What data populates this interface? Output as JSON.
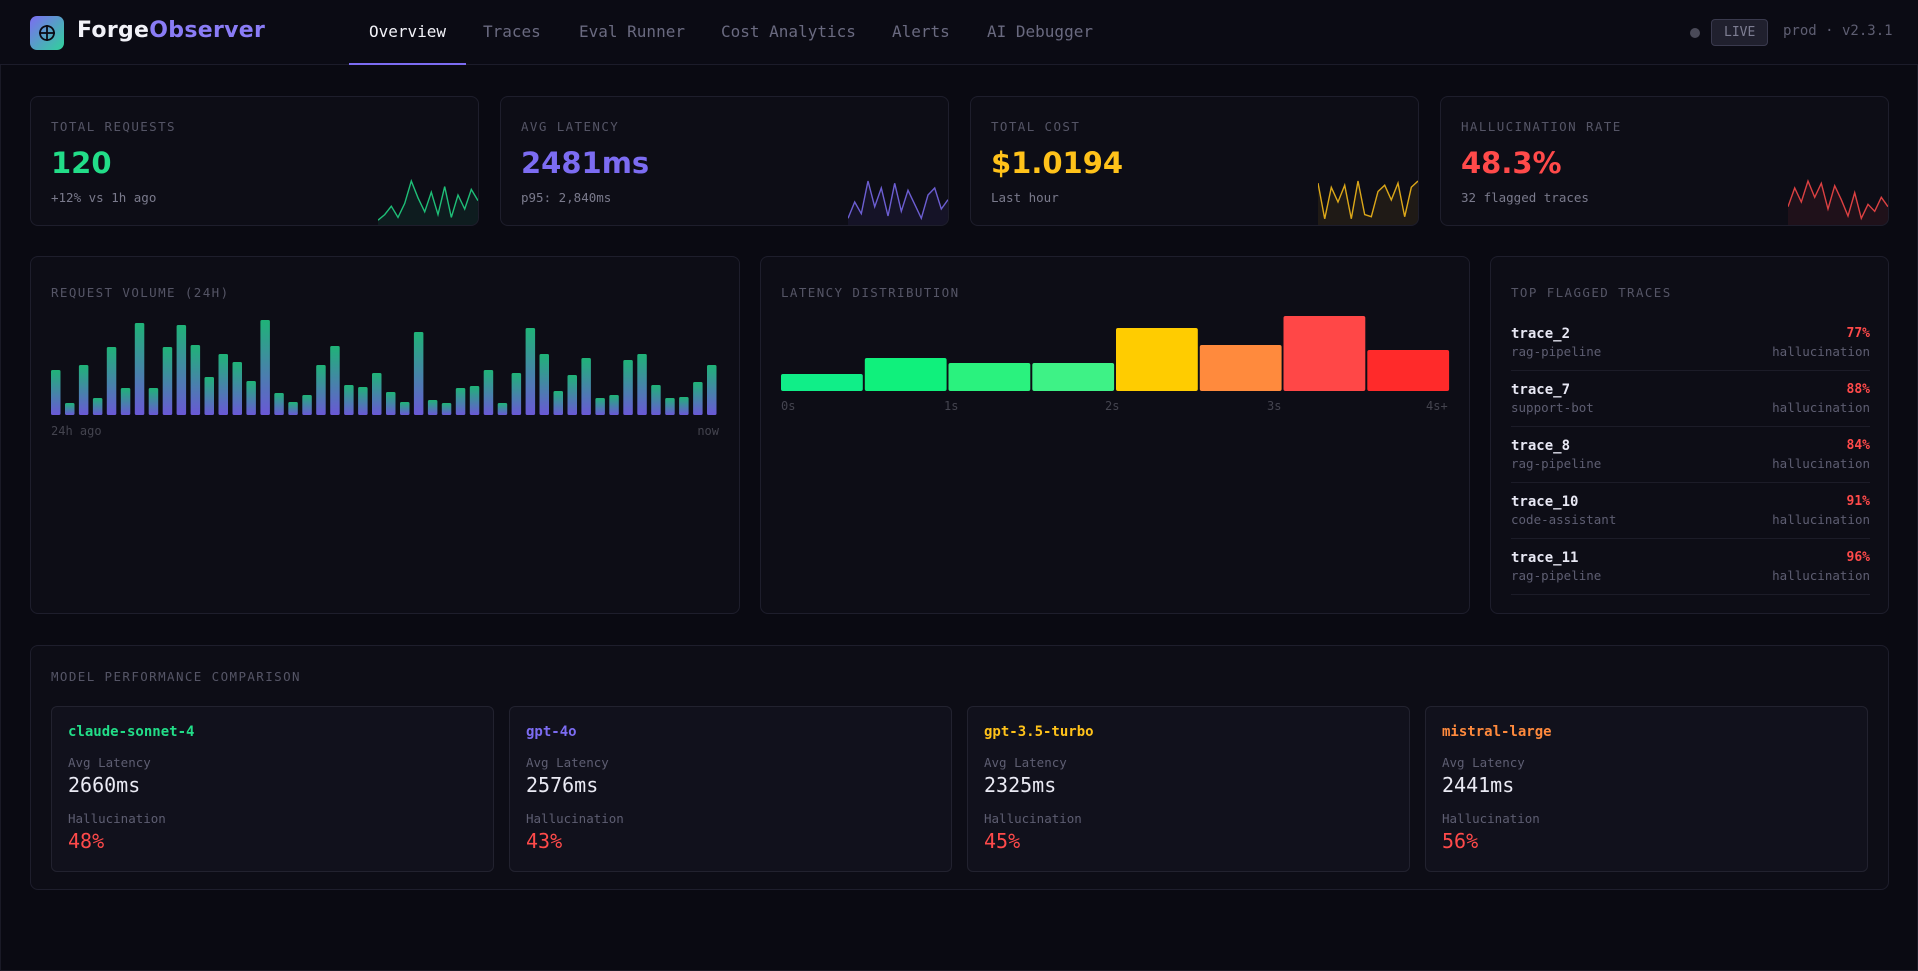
{
  "app": {
    "name_a": "Forge",
    "name_b": "Observer",
    "logo_icon": "target-icon"
  },
  "nav": {
    "tabs": [
      "Overview",
      "Traces",
      "Eval Runner",
      "Cost Analytics",
      "Alerts",
      "AI Debugger"
    ],
    "active": "Overview",
    "live_label": "LIVE",
    "env_label": "prod · v2.3.1"
  },
  "stats": [
    {
      "title": "TOTAL REQUESTS",
      "value": "120",
      "sub": "+12% vs 1h ago",
      "color": "#22dd88",
      "spark": [
        2,
        6,
        12,
        4,
        14,
        30,
        18,
        8,
        22,
        6,
        26,
        4,
        20,
        10,
        24,
        16
      ]
    },
    {
      "title": "AVG LATENCY",
      "value": "2481ms",
      "sub": "p95: 2,840ms",
      "color": "#7c6cf2",
      "spark": [
        4,
        18,
        8,
        36,
        14,
        30,
        6,
        34,
        10,
        28,
        16,
        4,
        24,
        30,
        12,
        20
      ]
    },
    {
      "title": "TOTAL COST",
      "value": "$1.0194",
      "sub": "Last hour",
      "color": "#ffc21a",
      "spark": [
        38,
        4,
        34,
        20,
        36,
        4,
        40,
        8,
        6,
        30,
        36,
        22,
        38,
        6,
        34,
        40
      ]
    },
    {
      "title": "HALLUCINATION RATE",
      "value": "48.3%",
      "sub": "32 flagged traces",
      "color": "#ff4a4a",
      "spark": [
        14,
        30,
        18,
        36,
        22,
        34,
        12,
        32,
        20,
        6,
        26,
        4,
        16,
        10,
        22,
        14
      ]
    }
  ],
  "request_volume": {
    "title": "REQUEST VOLUME (24H)",
    "start_label": "24h ago",
    "end_label": "now",
    "values": [
      45,
      12,
      50,
      17,
      68,
      27,
      92,
      27,
      68,
      90,
      70,
      38,
      61,
      53,
      34,
      95,
      22,
      13,
      20,
      50,
      69,
      30,
      28,
      42,
      23,
      13,
      83,
      15,
      12,
      27,
      29,
      45,
      12,
      42,
      87,
      61,
      24,
      40,
      57,
      17,
      20,
      55,
      61,
      30,
      17,
      18,
      33,
      50
    ]
  },
  "latency_distribution": {
    "title": "LATENCY DISTRIBUTION",
    "ticks": [
      "0s",
      "1s",
      "2s",
      "3s",
      "4s+"
    ],
    "bins": [
      {
        "value": 17,
        "color": "#10ee88"
      },
      {
        "value": 33,
        "color": "#10f07c"
      },
      {
        "value": 28,
        "color": "#2af27e"
      },
      {
        "value": 28,
        "color": "#3ef286"
      },
      {
        "value": 63,
        "color": "#ffcc00"
      },
      {
        "value": 46,
        "color": "#ff8a3d"
      },
      {
        "value": 75,
        "color": "#ff4747"
      },
      {
        "value": 41,
        "color": "#ff2a2a"
      }
    ]
  },
  "flagged": {
    "title": "TOP FLAGGED TRACES",
    "kind_label": "hallucination",
    "items": [
      {
        "name": "trace_2",
        "app": "rag-pipeline",
        "pct": "77%"
      },
      {
        "name": "trace_7",
        "app": "support-bot",
        "pct": "88%"
      },
      {
        "name": "trace_8",
        "app": "rag-pipeline",
        "pct": "84%"
      },
      {
        "name": "trace_10",
        "app": "code-assistant",
        "pct": "91%"
      },
      {
        "name": "trace_11",
        "app": "rag-pipeline",
        "pct": "96%"
      }
    ]
  },
  "models": {
    "title": "MODEL PERFORMANCE COMPARISON",
    "latency_label": "Avg Latency",
    "hallucination_label": "Hallucination",
    "items": [
      {
        "name": "claude-sonnet-4",
        "latency": "2660ms",
        "hallucination": "48%",
        "color": "#22dd88"
      },
      {
        "name": "gpt-4o",
        "latency": "2576ms",
        "hallucination": "43%",
        "color": "#7c6cf2"
      },
      {
        "name": "gpt-3.5-turbo",
        "latency": "2325ms",
        "hallucination": "45%",
        "color": "#ffc21a"
      },
      {
        "name": "mistral-large",
        "latency": "2441ms",
        "hallucination": "56%",
        "color": "#ff8a3d"
      }
    ]
  }
}
